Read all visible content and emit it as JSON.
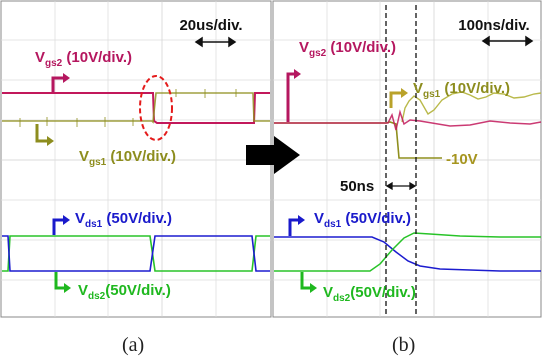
{
  "colors": {
    "vgs2": "#c2185b",
    "vgs1": "#8f8f1e",
    "vds1": "#1c1ccf",
    "vds2": "#28c328",
    "label_vgs1": "#8d8d1e",
    "label_vgs2": "#b5175f",
    "label_vds1": "#1a1acb",
    "label_vds2": "#1fb81f"
  },
  "panel_a": {
    "timebase": "20us/div.",
    "vgs2": {
      "main": "V",
      "sub": "gs2",
      "rest": " (10V/div.)"
    },
    "vgs1": {
      "main": "V",
      "sub": "gs1",
      "rest": " (10V/div.)"
    },
    "vds1": {
      "main": "V",
      "sub": "ds1",
      "rest": " (50V/div.)"
    },
    "vds2": {
      "main": "V",
      "sub": "ds2",
      "rest": "(50V/div.)"
    },
    "caption": "(a)"
  },
  "panel_b": {
    "timebase": "100ns/div.",
    "vgs2": {
      "main": "V",
      "sub": "gs2",
      "rest": " (10V/div.)"
    },
    "vgs1": {
      "main": "V",
      "sub": "gs1",
      "rest": " (10V/div.)"
    },
    "vds1": {
      "main": "V",
      "sub": "ds1",
      "rest": " (50V/div.)"
    },
    "vds2": {
      "main": "V",
      "sub": "ds2",
      "rest": "(50V/div.)"
    },
    "deadtime": "50ns",
    "neg_voltage": "-10V",
    "caption": "(b)"
  }
}
